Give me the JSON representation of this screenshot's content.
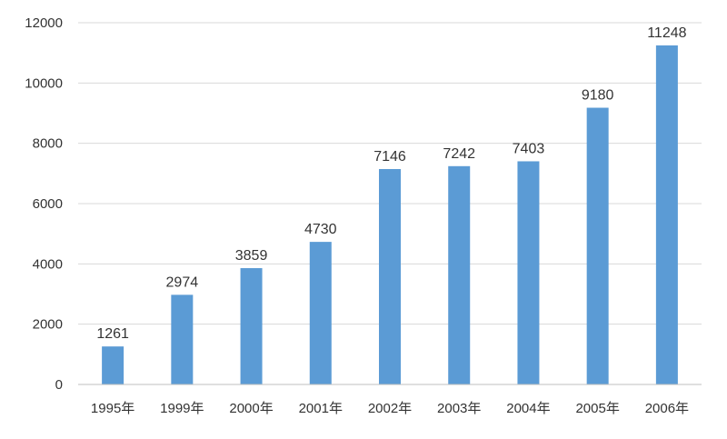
{
  "chart_data": {
    "type": "bar",
    "title": "",
    "xlabel": "",
    "ylabel": "",
    "categories": [
      "1995年",
      "1999年",
      "2000年",
      "2001年",
      "2002年",
      "2003年",
      "2004年",
      "2005年",
      "2006年"
    ],
    "values": [
      1261,
      2974,
      3859,
      4730,
      7146,
      7242,
      7403,
      9180,
      11248
    ],
    "ylim": [
      0,
      12000
    ],
    "yticks": [
      0,
      2000,
      4000,
      6000,
      8000,
      10000,
      12000
    ],
    "ytick_labels": [
      "0",
      "2000",
      "4000",
      "6000",
      "8000",
      "10000",
      "12000"
    ],
    "data_labels": [
      "1261",
      "2974",
      "3859",
      "4730",
      "7146",
      "7242",
      "7403",
      "9180",
      "11248"
    ],
    "grid": true,
    "legend": "none",
    "colors": {
      "bar": "#5b9bd5",
      "grid": "#d9d9d9",
      "axis": "#bfbfbf",
      "text": "#333333"
    }
  }
}
